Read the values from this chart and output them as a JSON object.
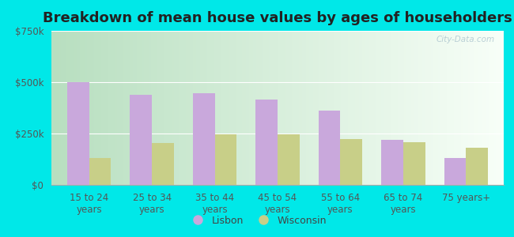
{
  "title": "Breakdown of mean house values by ages of householders",
  "categories": [
    "15 to 24\nyears",
    "25 to 34\nyears",
    "35 to 44\nyears",
    "45 to 54\nyears",
    "55 to 64\nyears",
    "65 to 74\nyears",
    "75 years+"
  ],
  "lisbon_values": [
    500000,
    440000,
    445000,
    415000,
    360000,
    220000,
    130000
  ],
  "wisconsin_values": [
    130000,
    205000,
    245000,
    248000,
    222000,
    208000,
    182000
  ],
  "lisbon_color": "#c9a8dc",
  "wisconsin_color": "#c8cf88",
  "ylim": [
    0,
    750000
  ],
  "yticks": [
    0,
    250000,
    500000,
    750000
  ],
  "ytick_labels": [
    "$0",
    "$250k",
    "$500k",
    "$750k"
  ],
  "outer_bg": "#00e8e8",
  "plot_bg_left": "#b8dfc0",
  "plot_bg_right": "#f0fff0",
  "bar_width": 0.35,
  "legend_labels": [
    "Lisbon",
    "Wisconsin"
  ],
  "watermark": "City-Data.com",
  "title_fontsize": 13,
  "tick_fontsize": 8.5,
  "legend_fontsize": 9
}
